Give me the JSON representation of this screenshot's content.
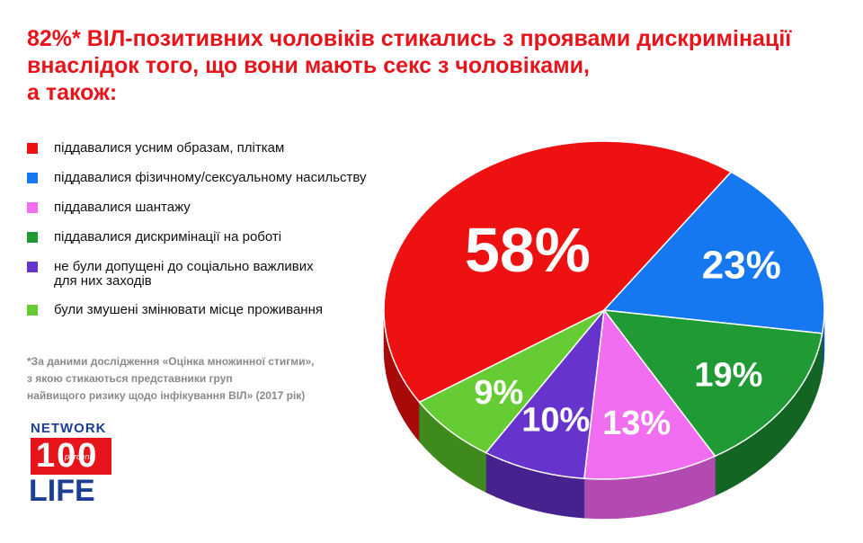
{
  "title_lines": [
    "82%* ВІЛ-позитивних чоловіків стикались з проявами дискримінації",
    "внаслідок того, що вони мають секс з чоловіками,",
    "а також:"
  ],
  "legend": [
    {
      "lines": [
        "піддавалися усним образам, пліткам"
      ],
      "color": "#ee1111"
    },
    {
      "lines": [
        "піддавалися фізичному/сексуальному насильству"
      ],
      "color": "#1678f0"
    },
    {
      "lines": [
        "піддавалися шантажу"
      ],
      "color": "#f16ef0"
    },
    {
      "lines": [
        "піддавалися дискримінації на роботі"
      ],
      "color": "#1f9a35"
    },
    {
      "lines": [
        "не були допущені до соціально важливих",
        "для них заходів"
      ],
      "color": "#6633cc"
    },
    {
      "lines": [
        "були змушені змінювати місце проживання"
      ],
      "color": "#66cc33"
    }
  ],
  "footnote_lines": [
    "*За даними дослідження «Оцінка множинної стигми»,",
    "з якою стикаються представники груп",
    "найвищого ризику щодо інфікування ВІЛ» (2017 рік)"
  ],
  "logo": {
    "top": "NETWORK",
    "number": "100",
    "sub": "percent",
    "bottom": "LIFE"
  },
  "chart_data": {
    "type": "pie",
    "slices": [
      {
        "label": "58%",
        "value": 58,
        "color": "#ee1111",
        "side": "#a80a0a",
        "legend_index": 0
      },
      {
        "label": "23%",
        "value": 23,
        "color": "#1678f0",
        "side": "#0d4fa8",
        "legend_index": 1
      },
      {
        "label": "19%",
        "value": 19,
        "color": "#1f9a35",
        "side": "#136524",
        "legend_index": 3
      },
      {
        "label": "13%",
        "value": 13,
        "color": "#f16ef0",
        "side": "#b24ab1",
        "legend_index": 2
      },
      {
        "label": "10%",
        "value": 10,
        "color": "#6633cc",
        "side": "#46228f",
        "legend_index": 4
      },
      {
        "label": "9%",
        "value": 9,
        "color": "#66cc33",
        "side": "#3f8a1c",
        "legend_index": 5
      }
    ],
    "style": "3d"
  }
}
